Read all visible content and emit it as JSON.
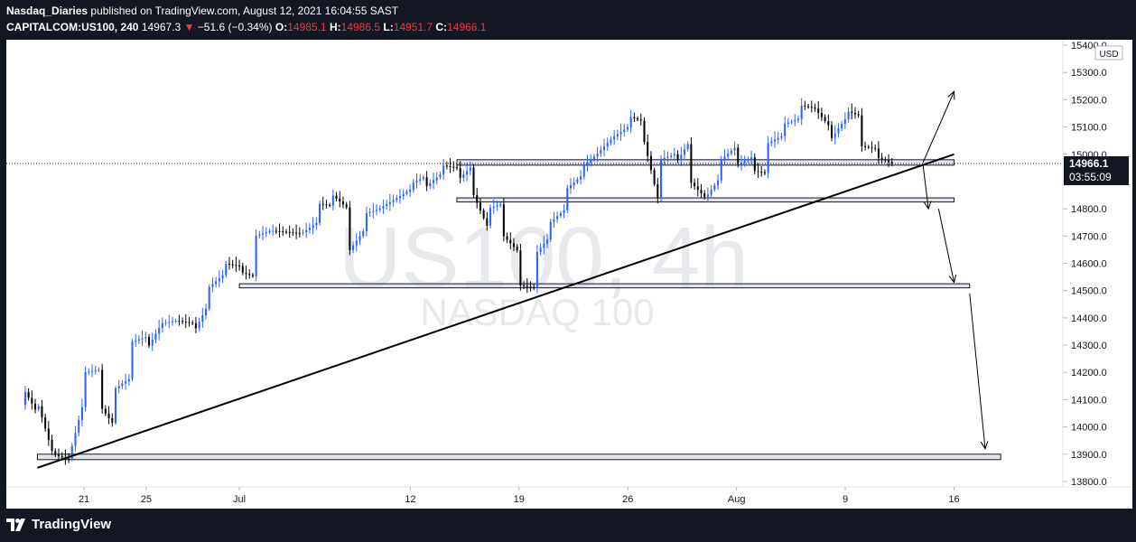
{
  "header": {
    "author": "Nasdaq_Diaries",
    "published": "published on TradingView.com, August 12, 2021 16:04:55 SAST",
    "symbol": "CAPITALCOM:US100, 240",
    "last": "14967.3",
    "down_arrow": "▼",
    "change": "−51.6 (−0.34%)",
    "o_label": "O:",
    "o_value": "14985.1",
    "h_label": "H:",
    "h_value": "14986.5",
    "l_label": "L:",
    "l_value": "14951.7",
    "c_label": "C:",
    "c_value": "14966.1"
  },
  "footer": {
    "logo_text": "TradingView",
    "logo_icon": "tradingview-logo-icon"
  },
  "colors": {
    "up": "#2962ff",
    "down": "#000000",
    "background": "#ffffff",
    "frame": "#131722",
    "price_label": "#131722"
  },
  "chart_data": {
    "type": "candlestick",
    "symbol": "US100",
    "timeframe": "4h",
    "watermark_main": "US100, 4h",
    "watermark_sub": "NASDAQ 100",
    "currency": "USD",
    "price_label": "14966.1",
    "countdown": "03:55:09",
    "y_ticks": [
      "15400.0",
      "15300.0",
      "15200.0",
      "15100.0",
      "15000.0",
      "14900.0",
      "14800.0",
      "14700.0",
      "14600.0",
      "14500.0",
      "14400.0",
      "14300.0",
      "14200.0",
      "14100.0",
      "14000.0",
      "13900.0",
      "13800.0"
    ],
    "ylim": [
      13780,
      15420
    ],
    "x_ticks": [
      "21",
      "25",
      "Jul",
      "12",
      "19",
      "26",
      "Aug",
      "9",
      "16"
    ],
    "x_tick_dates": [
      "2021-06-21",
      "2021-06-25",
      "2021-07-01",
      "2021-07-12",
      "2021-07-19",
      "2021-07-26",
      "2021-08-02",
      "2021-08-09",
      "2021-08-16"
    ],
    "close_path": [
      [
        "2021-06-17",
        14080
      ],
      [
        "2021-06-17",
        14150
      ],
      [
        "2021-06-18",
        14050
      ],
      [
        "2021-06-18",
        14090
      ],
      [
        "2021-06-19",
        13900
      ],
      [
        "2021-06-20",
        13880
      ],
      [
        "2021-06-21",
        14100
      ],
      [
        "2021-06-21",
        14200
      ],
      [
        "2021-06-22",
        14210
      ],
      [
        "2021-06-22",
        14080
      ],
      [
        "2021-06-23",
        14000
      ],
      [
        "2021-06-23",
        14140
      ],
      [
        "2021-06-24",
        14180
      ],
      [
        "2021-06-24",
        14310
      ],
      [
        "2021-06-25",
        14330
      ],
      [
        "2021-06-25",
        14280
      ],
      [
        "2021-06-26",
        14380
      ],
      [
        "2021-06-27",
        14390
      ],
      [
        "2021-06-28",
        14380
      ],
      [
        "2021-06-28",
        14340
      ],
      [
        "2021-06-29",
        14450
      ],
      [
        "2021-06-29",
        14510
      ],
      [
        "2021-06-30",
        14560
      ],
      [
        "2021-06-30",
        14600
      ],
      [
        "2021-07-01",
        14590
      ],
      [
        "2021-07-01",
        14570
      ],
      [
        "2021-07-02",
        14550
      ],
      [
        "2021-07-02",
        14700
      ],
      [
        "2021-07-03",
        14720
      ],
      [
        "2021-07-05",
        14710
      ],
      [
        "2021-07-06",
        14750
      ],
      [
        "2021-07-06",
        14820
      ],
      [
        "2021-07-07",
        14810
      ],
      [
        "2021-07-07",
        14850
      ],
      [
        "2021-07-08",
        14800
      ],
      [
        "2021-07-08",
        14640
      ],
      [
        "2021-07-09",
        14720
      ],
      [
        "2021-07-09",
        14780
      ],
      [
        "2021-07-10",
        14800
      ],
      [
        "2021-07-12",
        14870
      ],
      [
        "2021-07-12",
        14890
      ],
      [
        "2021-07-13",
        14920
      ],
      [
        "2021-07-13",
        14880
      ],
      [
        "2021-07-14",
        14930
      ],
      [
        "2021-07-14",
        14960
      ],
      [
        "2021-07-15",
        14950
      ],
      [
        "2021-07-15",
        14900
      ],
      [
        "2021-07-16",
        14960
      ],
      [
        "2021-07-16",
        14860
      ],
      [
        "2021-07-17",
        14730
      ],
      [
        "2021-07-17",
        14800
      ],
      [
        "2021-07-18",
        14820
      ],
      [
        "2021-07-18",
        14700
      ],
      [
        "2021-07-19",
        14640
      ],
      [
        "2021-07-19",
        14520
      ],
      [
        "2021-07-20",
        14510
      ],
      [
        "2021-07-20",
        14630
      ],
      [
        "2021-07-21",
        14700
      ],
      [
        "2021-07-21",
        14750
      ],
      [
        "2021-07-22",
        14800
      ],
      [
        "2021-07-22",
        14870
      ],
      [
        "2021-07-23",
        14920
      ],
      [
        "2021-07-23",
        14950
      ],
      [
        "2021-07-24",
        15000
      ],
      [
        "2021-07-25",
        15060
      ],
      [
        "2021-07-26",
        15100
      ],
      [
        "2021-07-26",
        15140
      ],
      [
        "2021-07-27",
        15120
      ],
      [
        "2021-07-27",
        15060
      ],
      [
        "2021-07-28",
        14820
      ],
      [
        "2021-07-28",
        14980
      ],
      [
        "2021-07-29",
        15000
      ],
      [
        "2021-07-29",
        14960
      ],
      [
        "2021-07-30",
        15050
      ],
      [
        "2021-07-30",
        14900
      ],
      [
        "2021-07-31",
        14840
      ],
      [
        "2021-08-01",
        14920
      ],
      [
        "2021-08-01",
        14980
      ],
      [
        "2021-08-02",
        15030
      ],
      [
        "2021-08-02",
        14960
      ],
      [
        "2021-08-03",
        14990
      ],
      [
        "2021-08-03",
        14940
      ],
      [
        "2021-08-04",
        14930
      ],
      [
        "2021-08-04",
        15040
      ],
      [
        "2021-08-05",
        15070
      ],
      [
        "2021-08-05",
        15110
      ],
      [
        "2021-08-06",
        15130
      ],
      [
        "2021-08-06",
        15180
      ],
      [
        "2021-08-07",
        15170
      ],
      [
        "2021-08-08",
        15100
      ],
      [
        "2021-08-08",
        15050
      ],
      [
        "2021-08-09",
        15130
      ],
      [
        "2021-08-09",
        15160
      ],
      [
        "2021-08-10",
        15140
      ],
      [
        "2021-08-10",
        15030
      ],
      [
        "2021-08-11",
        15020
      ],
      [
        "2021-08-11",
        14990
      ],
      [
        "2021-08-12",
        14967
      ]
    ],
    "annotations": {
      "support_zones": [
        {
          "price_top": 14980,
          "price_bottom": 14960,
          "from": "2021-07-15",
          "to": "2021-08-16"
        },
        {
          "price_top": 14840,
          "price_bottom": 14825,
          "from": "2021-07-15",
          "to": "2021-08-16"
        },
        {
          "price_top": 14525,
          "price_bottom": 14510,
          "from": "2021-07-01",
          "to": "2021-08-17"
        },
        {
          "price_top": 13900,
          "price_bottom": 13880,
          "from": "2021-06-18",
          "to": "2021-08-19"
        }
      ],
      "trendline": {
        "from": [
          "2021-06-18",
          13850
        ],
        "to": [
          "2021-08-16",
          15000
        ]
      },
      "arrows": [
        {
          "from": [
            "2021-08-14",
            14970
          ],
          "to": [
            "2021-08-16",
            15230
          ]
        },
        {
          "from": [
            "2021-08-14",
            14960
          ],
          "to": [
            "2021-08-14",
            14800
          ]
        },
        {
          "from": [
            "2021-08-15",
            14800
          ],
          "to": [
            "2021-08-16",
            14530
          ]
        },
        {
          "from": [
            "2021-08-17",
            14490
          ],
          "to": [
            "2021-08-18",
            13920
          ]
        }
      ]
    }
  }
}
